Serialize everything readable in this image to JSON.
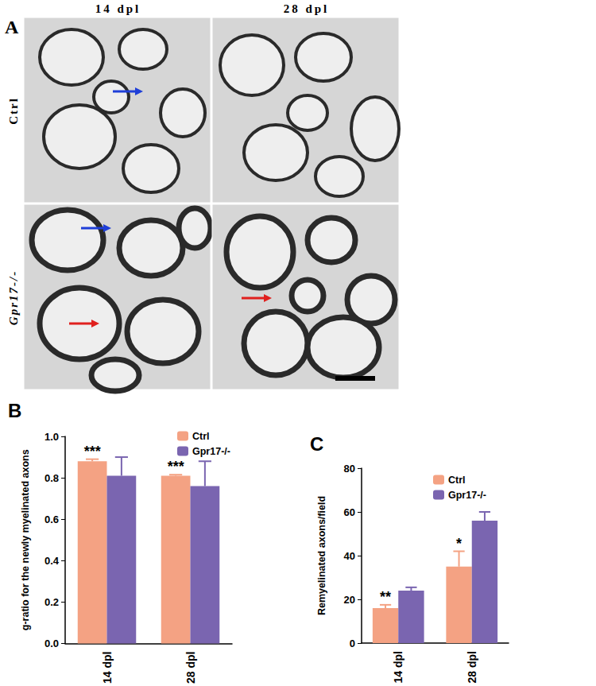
{
  "micrographs": {
    "title": "A",
    "columns": [
      "14 dpl",
      "28 dpl"
    ],
    "rows": [
      "Ctrl",
      "Gpr17-/-"
    ]
  },
  "chart_data": [
    {
      "type": "bar",
      "title": "B",
      "categories": [
        "14 dpl",
        "28 dpl"
      ],
      "ylabel": "g-ratio for the newly myelinated axons",
      "ylim": [
        0,
        1
      ],
      "yticks": [
        {
          "value": 0,
          "label": "0.0"
        },
        {
          "value": 0.2,
          "label": "0.2"
        },
        {
          "value": 0.4,
          "label": "0.4"
        },
        {
          "value": 0.6,
          "label": "0.6"
        },
        {
          "value": 0.8,
          "label": "0.8"
        },
        {
          "value": 1,
          "label": "1.0"
        }
      ],
      "grid": false,
      "legend": "upper right",
      "series": [
        {
          "name": "Ctrl",
          "color": "#f4a283",
          "values": [
            0.88,
            0.81
          ],
          "errors": [
            0.01,
            0.005
          ],
          "annotations": [
            "***",
            "***"
          ]
        },
        {
          "name": "Gpr17-/-",
          "color": "#7a65b0",
          "values": [
            0.81,
            0.76
          ],
          "errors": [
            0.09,
            0.12
          ]
        }
      ]
    },
    {
      "type": "bar",
      "title": "C",
      "categories": [
        "14 dpl",
        "28 dpl"
      ],
      "ylabel": "Remyelinated axons/field",
      "ylim": [
        0,
        80
      ],
      "yticks": [
        0,
        20,
        40,
        60,
        80
      ],
      "grid": false,
      "legend": "upper right",
      "series": [
        {
          "name": "Ctrl",
          "color": "#f4a283",
          "values": [
            16,
            35
          ],
          "errors": [
            1.5,
            7
          ],
          "annotations": [
            "**",
            "*"
          ]
        },
        {
          "name": "Gpr17-/-",
          "color": "#7a65b0",
          "values": [
            24,
            56
          ],
          "errors": [
            1.5,
            4
          ]
        }
      ]
    }
  ]
}
